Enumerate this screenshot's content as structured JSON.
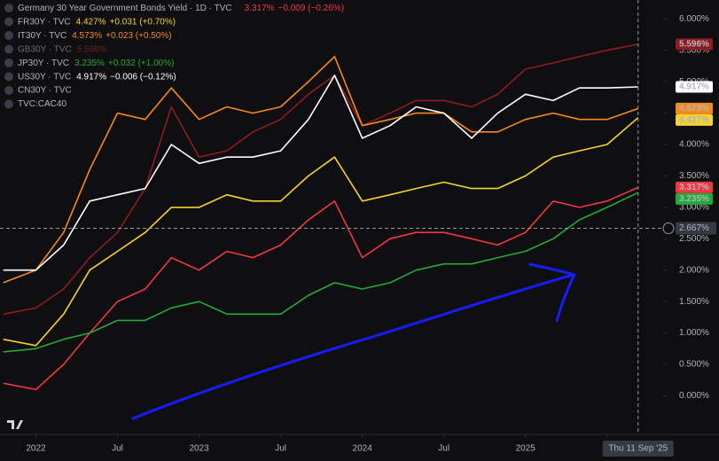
{
  "chart_data": {
    "type": "line",
    "x": [
      2021.8,
      2022.0,
      2022.17,
      2022.33,
      2022.5,
      2022.67,
      2022.83,
      2023.0,
      2023.17,
      2023.33,
      2023.5,
      2023.67,
      2023.83,
      2024.0,
      2024.17,
      2024.33,
      2024.5,
      2024.67,
      2024.83,
      2025.0,
      2025.17,
      2025.33,
      2025.5,
      2025.69
    ],
    "xlim": [
      2021.78,
      2025.8
    ],
    "xticks": [
      {
        "value": 2022,
        "label": "2022"
      },
      {
        "value": 2022.5,
        "label": "Jul"
      },
      {
        "value": 2023,
        "label": "2023"
      },
      {
        "value": 2023.5,
        "label": "Jul"
      },
      {
        "value": 2024,
        "label": "2024"
      },
      {
        "value": 2024.5,
        "label": "Jul"
      },
      {
        "value": 2025,
        "label": "2025"
      },
      {
        "value": 2025.5,
        "label": "J"
      }
    ],
    "ylim": [
      -0.6,
      6.3
    ],
    "yticks": [
      {
        "value": 0,
        "label": "0.000%"
      },
      {
        "value": 0.5,
        "label": "0.500%"
      },
      {
        "value": 1,
        "label": "1.000%"
      },
      {
        "value": 1.5,
        "label": "1.500%"
      },
      {
        "value": 2,
        "label": "2.000%"
      },
      {
        "value": 2.5,
        "label": "2.500%"
      },
      {
        "value": 3,
        "label": "3.000%"
      },
      {
        "value": 3.5,
        "label": "3.500%"
      },
      {
        "value": 4,
        "label": "4.000%"
      },
      {
        "value": 4.5,
        "label": "4.500%"
      },
      {
        "value": 5,
        "label": "5.000%"
      },
      {
        "value": 5.5,
        "label": "5.500%"
      },
      {
        "value": 6,
        "label": "6.000%"
      }
    ],
    "grid": false,
    "series": [
      {
        "name": "Germany 30 Year Government Bonds Yield · 1D · TVC",
        "color": "#f23645",
        "last_label": "3.317%",
        "change": "−0.009 (−0.26%)",
        "values": [
          0.2,
          0.1,
          0.5,
          1.0,
          1.5,
          1.7,
          2.2,
          2.0,
          2.3,
          2.2,
          2.4,
          2.8,
          3.1,
          2.2,
          2.5,
          2.6,
          2.6,
          2.5,
          2.4,
          2.6,
          3.1,
          3.0,
          3.1,
          3.317
        ]
      },
      {
        "name": "FR30Y · TVC",
        "color": "#f5d22f",
        "last_label": "4.427%",
        "change": "+0.031 (+0.70%)",
        "values": [
          0.9,
          0.8,
          1.3,
          2.0,
          2.3,
          2.6,
          3.0,
          3.0,
          3.2,
          3.1,
          3.1,
          3.5,
          3.8,
          3.1,
          3.2,
          3.3,
          3.4,
          3.3,
          3.3,
          3.5,
          3.8,
          3.9,
          4.0,
          4.427
        ]
      },
      {
        "name": "IT30Y · TVC",
        "color": "#f7891c",
        "last_label": "4.573%",
        "change": "+0.023 (+0.50%)",
        "values": [
          1.8,
          2.0,
          2.6,
          3.6,
          4.5,
          4.4,
          4.9,
          4.4,
          4.6,
          4.5,
          4.6,
          5.0,
          5.4,
          4.3,
          4.4,
          4.5,
          4.5,
          4.2,
          4.2,
          4.4,
          4.5,
          4.4,
          4.4,
          4.573
        ]
      },
      {
        "name": "GB30Y · TVC",
        "color": "#8e1c22",
        "last_label": "5.596%",
        "values": [
          1.3,
          1.4,
          1.7,
          2.2,
          2.6,
          3.3,
          4.6,
          3.8,
          3.9,
          4.2,
          4.4,
          4.8,
          5.1,
          4.3,
          4.5,
          4.7,
          4.7,
          4.6,
          4.8,
          5.2,
          5.3,
          5.4,
          5.5,
          5.596
        ]
      },
      {
        "name": "JP30Y · TVC",
        "color": "#22ab39",
        "last_label": "3.235%",
        "change": "+0.032 (+1.00%)",
        "values": [
          0.7,
          0.75,
          0.9,
          1.0,
          1.2,
          1.2,
          1.4,
          1.5,
          1.3,
          1.3,
          1.3,
          1.6,
          1.8,
          1.7,
          1.8,
          2.0,
          2.1,
          2.1,
          2.2,
          2.3,
          2.5,
          2.8,
          3.0,
          3.235
        ]
      },
      {
        "name": "US30Y · TVC",
        "color": "#ffffff",
        "last_label": "4.917%",
        "change": "−0.006 (−0.12%)",
        "values": [
          2.0,
          2.0,
          2.4,
          3.1,
          3.2,
          3.3,
          4.0,
          3.7,
          3.8,
          3.8,
          3.9,
          4.4,
          5.1,
          4.1,
          4.3,
          4.6,
          4.5,
          4.1,
          4.5,
          4.8,
          4.7,
          4.9,
          4.9,
          4.917
        ]
      }
    ],
    "other_legend": [
      "CN30Y · TVC",
      "TVC:CAC40"
    ],
    "crosshair": {
      "x": 2025.69,
      "x_label": "Thu 11 Sep '25",
      "y": 2.667,
      "y_label": "2.667%"
    }
  }
}
